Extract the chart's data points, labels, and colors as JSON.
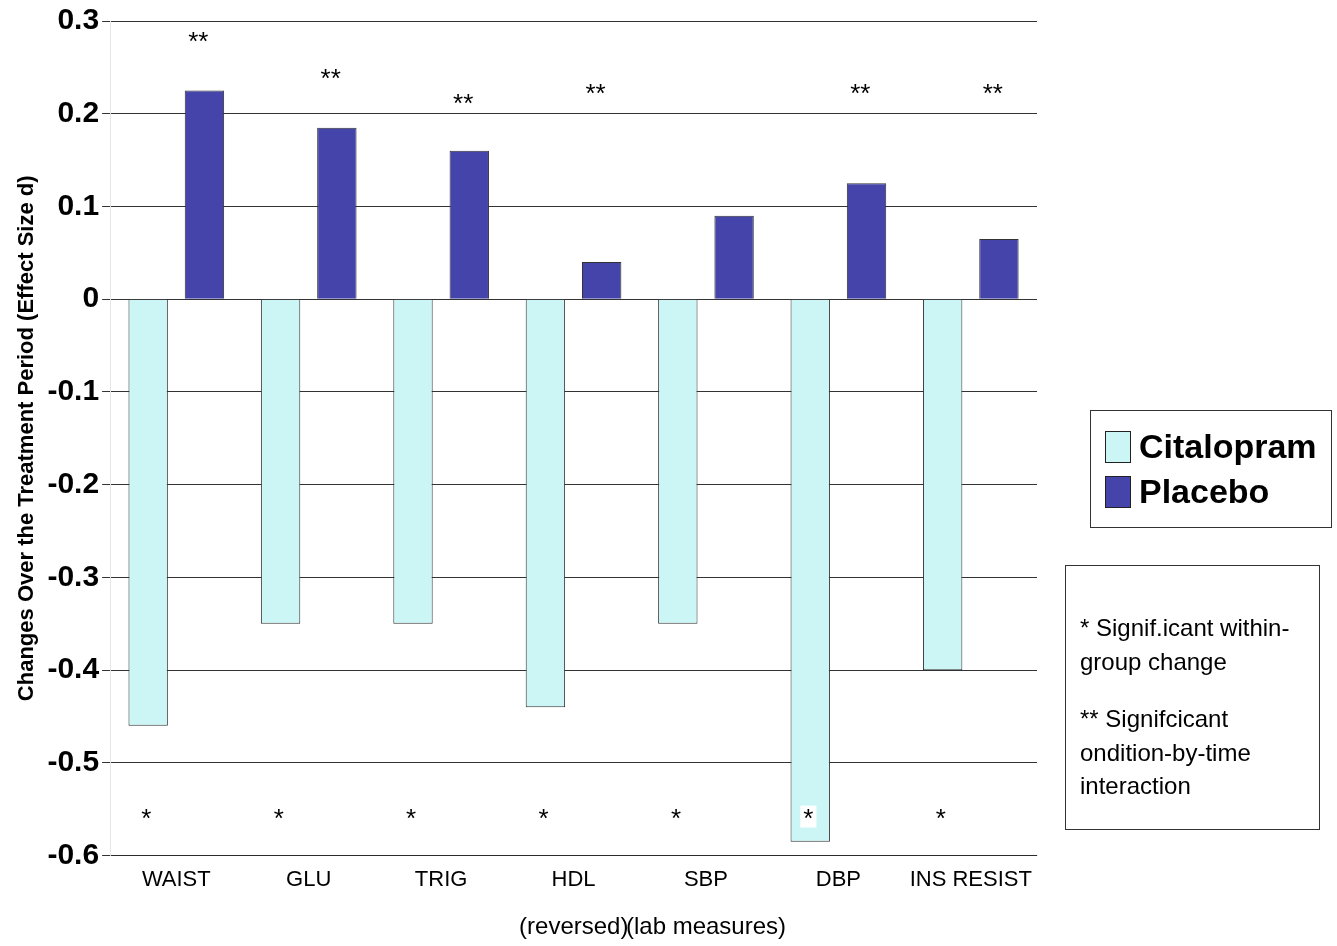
{
  "chart_data": {
    "type": "bar",
    "ylabel": "Changes Over the Treatment Period (Effect Size d)",
    "categories": [
      "WAIST",
      "GLU",
      "TRIG",
      "HDL",
      "SBP",
      "DBP",
      "INS RESIST"
    ],
    "series": [
      {
        "name": "Citalopram",
        "color": "#ccf5f5",
        "values": [
          -0.46,
          -0.35,
          -0.35,
          -0.44,
          -0.35,
          -0.585,
          -0.4
        ]
      },
      {
        "name": "Placebo",
        "color": "#4444aa",
        "values": [
          0.225,
          0.185,
          0.16,
          0.04,
          0.09,
          0.125,
          0.065
        ]
      }
    ],
    "ylim": [
      -0.6,
      0.3
    ],
    "yticks": [
      -0.6,
      -0.5,
      -0.4,
      -0.3,
      -0.2,
      -0.1,
      0,
      0.1,
      0.2,
      0.3
    ],
    "grid": "y",
    "legend": "right",
    "annotations": [
      "**",
      "**",
      "**",
      "**",
      "**",
      "**",
      "*",
      "*",
      "*",
      "*",
      "*",
      "*",
      "*",
      "*   Signif.icant within-group  change",
      "**   Signifcicant ondition-by-time interaction",
      "(reversed)",
      "(lab measures)"
    ]
  }
}
